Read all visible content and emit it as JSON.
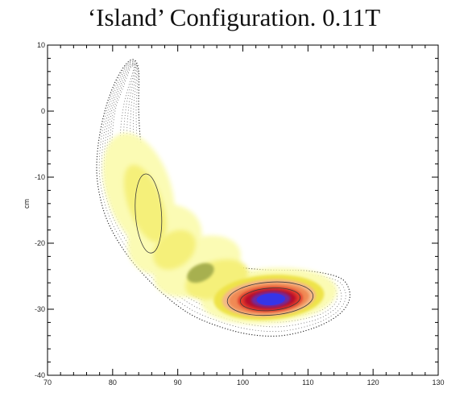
{
  "chart_data": {
    "type": "heatmap",
    "title": "‘Island’ Configuration. 0.11T",
    "xlabel": "",
    "ylabel": "cm",
    "xlim": [
      70,
      130
    ],
    "ylim": [
      -40,
      10
    ],
    "x_ticks": [
      70,
      80,
      90,
      100,
      110,
      120,
      130
    ],
    "y_ticks": [
      -40,
      -30,
      -20,
      -10,
      0,
      10
    ],
    "grid": false,
    "colormap": {
      "yellow_light": "#fbfbb4",
      "yellow": "#f5f07a",
      "yellow_deep": "#eee34a",
      "olive": "#a7b050",
      "orange_light": "#f4b888",
      "orange": "#f08a55",
      "red": "#e03a2a",
      "crimson": "#b80e2a",
      "purple": "#6e2ca0",
      "blue": "#3535e8"
    },
    "banana_outline_points": [
      [
        83.2,
        7.8
      ],
      [
        81.8,
        6.8
      ],
      [
        80.2,
        4.0
      ],
      [
        78.8,
        0.0
      ],
      [
        77.8,
        -5.0
      ],
      [
        77.6,
        -10.0
      ],
      [
        78.6,
        -15.0
      ],
      [
        80.4,
        -19.0
      ],
      [
        83.2,
        -23.0
      ],
      [
        87.0,
        -27.0
      ],
      [
        91.5,
        -30.5
      ],
      [
        96.0,
        -32.5
      ],
      [
        101.0,
        -33.8
      ],
      [
        106.0,
        -34.0
      ],
      [
        111.0,
        -32.8
      ],
      [
        114.5,
        -31.0
      ],
      [
        116.2,
        -29.0
      ],
      [
        116.3,
        -27.0
      ],
      [
        114.8,
        -25.2
      ],
      [
        110.0,
        -24.2
      ],
      [
        103.0,
        -24.0
      ],
      [
        97.0,
        -23.2
      ],
      [
        92.0,
        -21.0
      ],
      [
        88.5,
        -17.0
      ],
      [
        86.0,
        -12.0
      ],
      [
        84.5,
        -6.0
      ],
      [
        84.0,
        0.0
      ],
      [
        84.0,
        6.0
      ]
    ],
    "peak_center": [
      104.0,
      -28.5
    ],
    "inner_contour_levels": 6
  }
}
